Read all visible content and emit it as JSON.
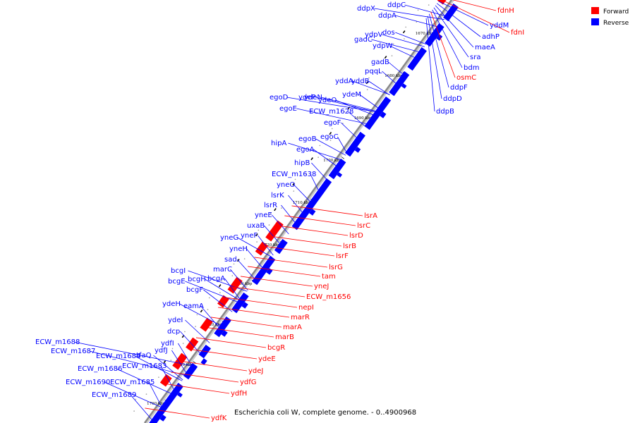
{
  "colors": {
    "forward": "#ff0000",
    "reverse": "#0000ff",
    "backbone": "#888888",
    "tick": "#000000"
  },
  "legend": [
    {
      "label": "Forward",
      "color": "#ff0000"
    },
    {
      "label": "Reverse",
      "color": "#0000ff"
    }
  ],
  "caption": "Escherichia coli W, complete genome. - 0..4900968",
  "ticks": [
    "1670 kbp",
    "1680 kbp",
    "1690 kbp",
    "1700 kbp",
    "1710 kbp",
    "1720 kbp",
    "1730 kbp",
    "1740 kbp",
    "1750 kbp",
    "1760 kbp"
  ],
  "reverse_genes": [
    "ddpX",
    "ddpC",
    "ddpA",
    "dos",
    "ydpV",
    "ydpW",
    "gadC",
    "gadB",
    "pqqL",
    "yddA",
    "yddB",
    "ydeN",
    "ydeM",
    "egoD",
    "ydeP",
    "ydeO",
    "egoE",
    "ECW_m1628",
    "egoF",
    "egoB",
    "egoC",
    "hipA",
    "egoA",
    "hipB",
    "ECW_m1638",
    "yneO",
    "lsrK",
    "lsrR",
    "yneE",
    "uxaB",
    "yneG",
    "yneF",
    "yneH",
    "sad",
    "bcgI",
    "marC",
    "bcgE",
    "bcgH",
    "bcgA",
    "bcgF",
    "ydeH",
    "eamA",
    "ydeI",
    "dcp",
    "ydfI",
    "ydfJ",
    "ECW_m1688",
    "ECW_m1687",
    "tfaQ",
    "ECW_m1684",
    "ECW_m1683",
    "ECW_m1686",
    "ECW_m1690",
    "ECW_m1685",
    "ECW_m1689"
  ],
  "forward_genes": [
    "lsrA",
    "lsrC",
    "lsrD",
    "lsrB",
    "lsrF",
    "lsrG",
    "tam",
    "yneJ",
    "ECW_m1656",
    "nepI",
    "marR",
    "marA",
    "marB",
    "bcgR",
    "ydeE",
    "ydeJ",
    "ydfG",
    "ydfH",
    "ydfK"
  ],
  "top_right_genes": [
    {
      "name": "fdnH",
      "color": "#ff0000"
    },
    {
      "name": "fdnI",
      "color": "#ff0000"
    },
    {
      "name": "yddM",
      "color": "#0000ff"
    },
    {
      "name": "adhP",
      "color": "#0000ff"
    },
    {
      "name": "maeA",
      "color": "#0000ff"
    },
    {
      "name": "sra",
      "color": "#0000ff"
    },
    {
      "name": "bdm",
      "color": "#0000ff"
    },
    {
      "name": "osmC",
      "color": "#ff0000"
    },
    {
      "name": "ddpF",
      "color": "#0000ff"
    },
    {
      "name": "ddpD",
      "color": "#0000ff"
    },
    {
      "name": "ddpB",
      "color": "#0000ff"
    }
  ]
}
